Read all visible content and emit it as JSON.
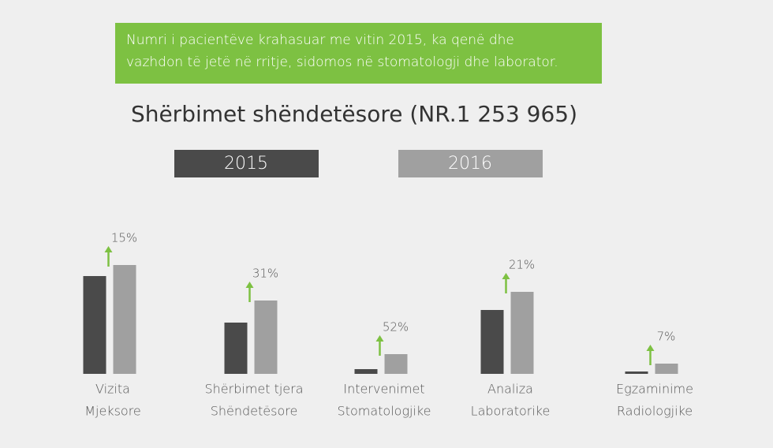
{
  "chart_data": {
    "type": "bar",
    "note": [
      "Numri i pacientëve krahasuar me vitin 2015, ka qenë dhe",
      "vazhdon të jetë në rritje, sidomos në stomatologji dhe laborator."
    ],
    "title": "Shërbimet shëndetësore (NR.1 253 965)",
    "categories": [
      [
        "Vizita",
        "Mjeksore"
      ],
      [
        "Shërbimet tjera",
        "Shëndetësore"
      ],
      [
        "Intervenimet",
        "Stomatologjike"
      ],
      [
        "Analiza",
        "Laboratorike"
      ],
      [
        "Egzaminime",
        "Radiologjike"
      ]
    ],
    "series": [
      {
        "name": "2015",
        "color": "#4a4a4a",
        "values": [
          124,
          65,
          6,
          81,
          3
        ]
      },
      {
        "name": "2016",
        "color": "#a0a0a0",
        "values": [
          138,
          93,
          25,
          104,
          13
        ]
      }
    ],
    "growth": {
      "values": [
        15,
        31,
        52,
        21,
        7
      ],
      "value_labels": [
        "15%",
        "31%",
        "52%",
        "21%",
        "7%"
      ],
      "color": "#7dc142"
    },
    "ylim": [
      0,
      140
    ]
  }
}
